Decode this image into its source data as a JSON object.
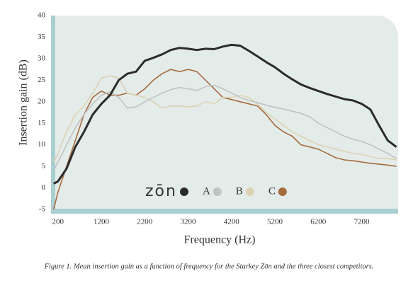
{
  "chart_data": {
    "type": "line",
    "x_label": "Frequency (Hz)",
    "y_label": "Insertion gain (dB)",
    "caption": "Figure 1. Mean insertion gain as a function of frequency for the Starkey Zōn and the three closest competitors.",
    "x": [
      100,
      200,
      400,
      600,
      800,
      1000,
      1200,
      1400,
      1600,
      1800,
      2000,
      2200,
      2400,
      2600,
      2800,
      3000,
      3200,
      3400,
      3600,
      3800,
      4000,
      4200,
      4400,
      4600,
      4800,
      5000,
      5200,
      5400,
      5600,
      5800,
      6000,
      6200,
      6400,
      6600,
      6800,
      7000,
      7200,
      7400,
      7600,
      7800,
      8000
    ],
    "series": [
      {
        "name": "zōn",
        "color": "#2b2b2b",
        "values": [
          1,
          1.5,
          4.5,
          9.5,
          13,
          17,
          19.5,
          21.5,
          25,
          26.5,
          27,
          29.5,
          30.2,
          31,
          32,
          32.5,
          32.3,
          32,
          32.3,
          32.2,
          32.8,
          33.2,
          33,
          31.8,
          30.5,
          29.2,
          28,
          26.5,
          25.2,
          24,
          23.2,
          22.5,
          21.8,
          21.2,
          20.6,
          20.3,
          19.5,
          18.2,
          14.5,
          11,
          9.5
        ]
      },
      {
        "name": "A",
        "color": "#bfc3c2",
        "values": [
          4,
          6,
          10,
          14,
          17,
          19.5,
          21.5,
          22.3,
          21,
          18.5,
          18.8,
          20,
          21,
          22,
          22.8,
          23.3,
          23,
          22.6,
          23.5,
          23.8,
          23,
          22,
          21,
          20.3,
          19.8,
          19.2,
          18.7,
          18.3,
          17.8,
          17.3,
          16.5,
          15,
          14,
          13,
          12,
          11.3,
          10.8,
          10,
          9,
          8,
          6.8
        ]
      },
      {
        "name": "B",
        "color": "#dcd3b4",
        "values": [
          6,
          8,
          13,
          17,
          19,
          22,
          25.5,
          26,
          25.5,
          22,
          21.5,
          21,
          20,
          18.5,
          19,
          19,
          18.8,
          19,
          20,
          19.5,
          21,
          21,
          21.5,
          21,
          19.5,
          17.5,
          16,
          14.5,
          13,
          12,
          11,
          10,
          9.5,
          9,
          8.5,
          8,
          7.8,
          7.3,
          6.8,
          6.8,
          6.5
        ]
      },
      {
        "name": "C",
        "color": "#a66c3e",
        "values": [
          -5,
          -1,
          5,
          11,
          17,
          21,
          22.5,
          21.5,
          21.5,
          22,
          21.5,
          23,
          25,
          26.5,
          27.5,
          27,
          27.5,
          27,
          25,
          23,
          21,
          20.5,
          20,
          19.5,
          19,
          17,
          14.5,
          13,
          12,
          10,
          9.5,
          9,
          8,
          7,
          6.5,
          6.3,
          6,
          5.7,
          5.5,
          5.3,
          5
        ]
      }
    ],
    "xlim": [
      40,
      8040
    ],
    "ylim": [
      -5,
      40
    ],
    "xticks": [
      200,
      1200,
      2200,
      3200,
      4200,
      5200,
      6200,
      7200
    ],
    "yticks": [
      -5,
      0,
      5,
      10,
      15,
      20,
      25,
      30,
      35,
      40
    ]
  }
}
